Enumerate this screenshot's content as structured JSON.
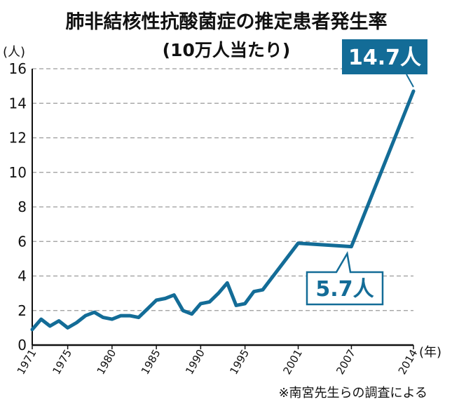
{
  "chart_data": {
    "type": "line",
    "title": "肺非結核性抗酸菌症の推定患者発生率",
    "subtitle": "(10万人当たり)",
    "y_unit": "(人)",
    "x_unit": "(年)",
    "source": "※南宮先生らの調査による",
    "color": "#136c97",
    "grid": "dashed-horizontal",
    "xlim": [
      1971,
      2014
    ],
    "ylim": [
      0,
      16
    ],
    "y_ticks": [
      "0",
      "2",
      "4",
      "6",
      "8",
      "10",
      "12",
      "14",
      "16"
    ],
    "x_tick_years": [
      1971,
      1975,
      1980,
      1985,
      1990,
      1995,
      2001,
      2007,
      2014
    ],
    "x_tick_labels": [
      "1971",
      "1975",
      "1980",
      "1985",
      "1990",
      "1995",
      "2001",
      "2007",
      "2014"
    ],
    "series": [
      {
        "x": [
          1971,
          1972,
          1973,
          1974,
          1975,
          1976,
          1977,
          1978,
          1979,
          1980,
          1981,
          1982,
          1983,
          1984,
          1985,
          1986,
          1987,
          1988,
          1989,
          1990,
          1991,
          1992,
          1993,
          1994,
          1995,
          1996,
          1997,
          2001,
          2007,
          2014
        ],
        "y": [
          0.9,
          1.5,
          1.1,
          1.4,
          1.0,
          1.3,
          1.7,
          1.9,
          1.6,
          1.5,
          1.7,
          1.7,
          1.6,
          2.1,
          2.6,
          2.7,
          2.9,
          2.0,
          1.8,
          2.4,
          2.5,
          3.0,
          3.6,
          2.3,
          2.4,
          3.1,
          3.2,
          5.9,
          5.7,
          14.7
        ]
      }
    ],
    "annotations": [
      {
        "text": "14.7人",
        "x": 2014,
        "y": 14.7,
        "style": "filled-box"
      },
      {
        "text": "5.7人",
        "x": 2007,
        "y": 5.7,
        "style": "outlined-box"
      }
    ]
  }
}
